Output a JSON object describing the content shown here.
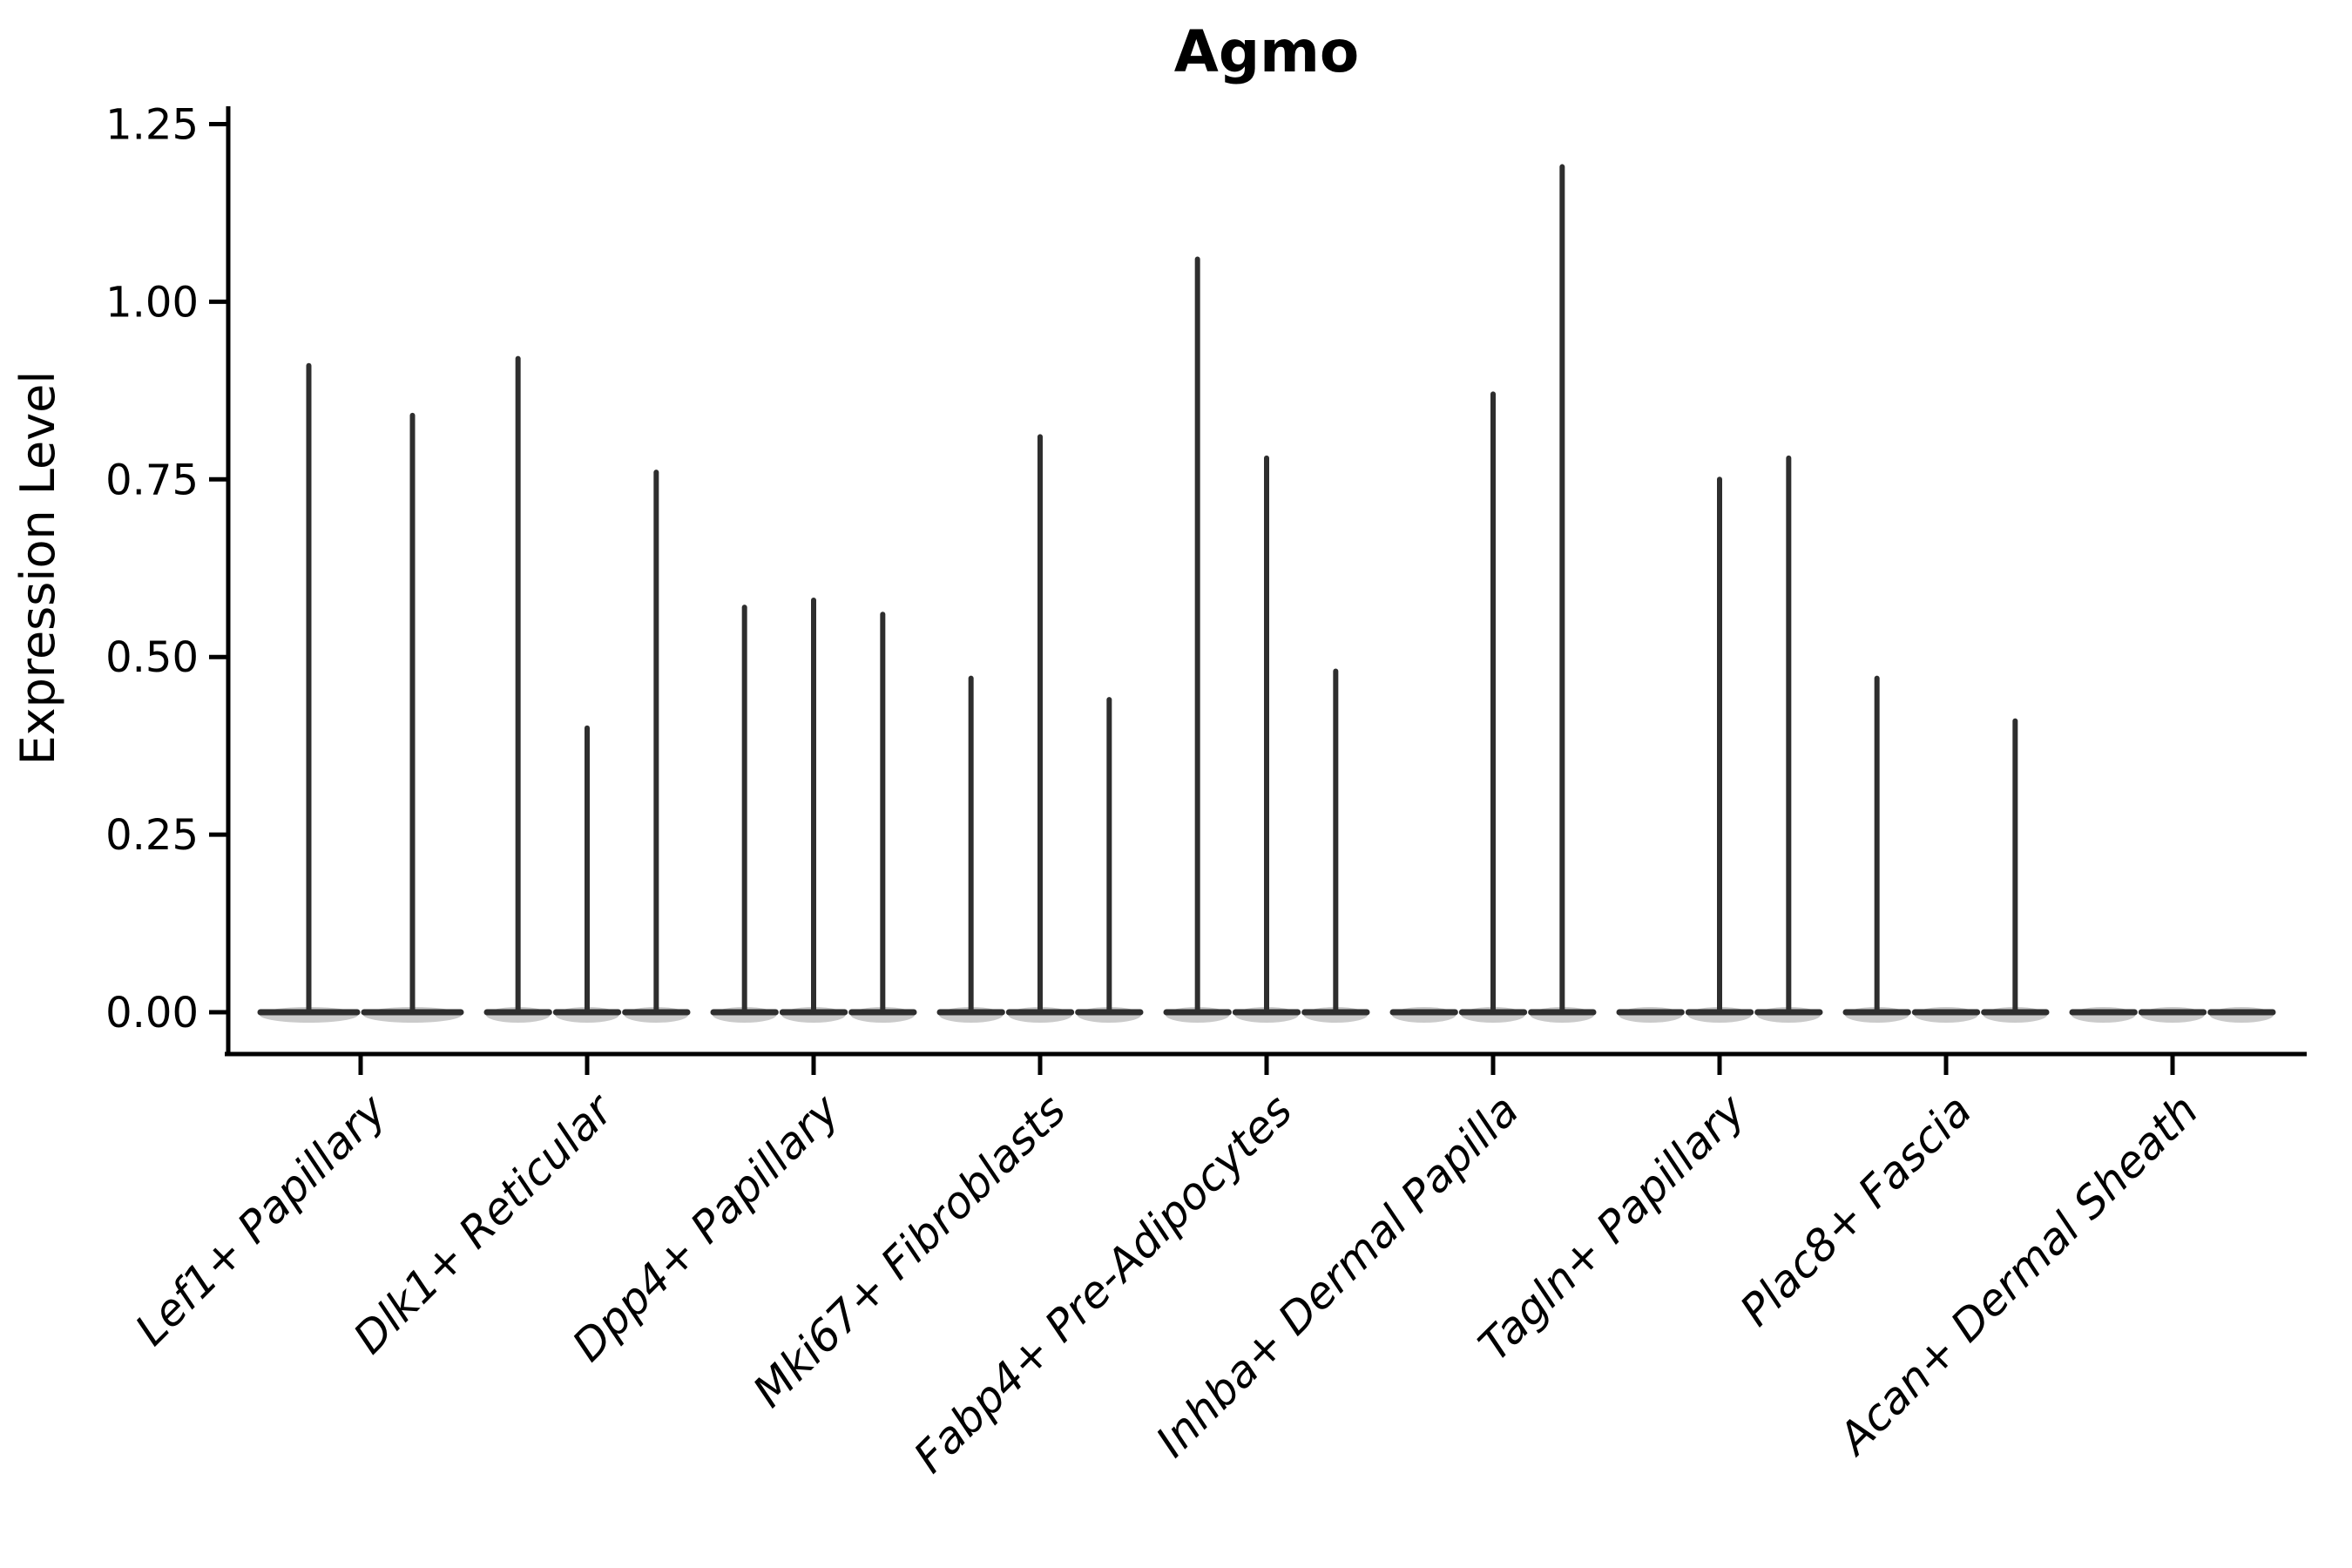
{
  "title": "Agmo",
  "y_axis": {
    "label": "Expression Level",
    "tick_labels": [
      "0.00",
      "0.25",
      "0.50",
      "0.75",
      "1.00",
      "1.25"
    ],
    "tick_values": [
      0.0,
      0.25,
      0.5,
      0.75,
      1.0,
      1.25
    ]
  },
  "chart_data": {
    "type": "violin",
    "title": "Agmo",
    "xlabel": "",
    "ylabel": "Expression Level",
    "ylim": [
      0.0,
      1.25
    ],
    "yticks": [
      0.0,
      0.25,
      0.5,
      0.75,
      1.0,
      1.25
    ],
    "ytick_labels": [
      "0.00",
      "0.25",
      "0.50",
      "0.75",
      "1.00",
      "1.25"
    ],
    "grid": false,
    "legend": "none",
    "violin_style": "thin spike violins: density mass concentrated at 0 with a flat base line and a thin vertical tail rising to the maximum expression value; groups contain dodged sub-violins",
    "violin_color": "#2e2e2e",
    "axis_color": "#000000",
    "categories": [
      "Lef1+ Papillary",
      "Dlk1+ Reticular",
      "Dpp4+ Papillary",
      "Mki67+ Fibroblasts",
      "Fabp4+ Pre-Adipocytes",
      "Inhba+ Dermal Papilla",
      "Tagln+ Papillary",
      "Plac8+ Fascia",
      "Acan+ Dermal Sheath"
    ],
    "series": [
      {
        "category": "Lef1+ Papillary",
        "spike_max_values": [
          0.91,
          0.84
        ]
      },
      {
        "category": "Dlk1+ Reticular",
        "spike_max_values": [
          0.92,
          0.4,
          0.76
        ]
      },
      {
        "category": "Dpp4+ Papillary",
        "spike_max_values": [
          0.57,
          0.58,
          0.56
        ]
      },
      {
        "category": "Mki67+ Fibroblasts",
        "spike_max_values": [
          0.47,
          0.81,
          0.44
        ]
      },
      {
        "category": "Fabp4+ Pre-Adipocytes",
        "spike_max_values": [
          1.06,
          0.78,
          0.48
        ]
      },
      {
        "category": "Inhba+ Dermal Papilla",
        "spike_max_values": [
          0.0,
          0.87,
          1.19
        ]
      },
      {
        "category": "Tagln+ Papillary",
        "spike_max_values": [
          0.0,
          0.75,
          0.78
        ]
      },
      {
        "category": "Plac8+ Fascia",
        "spike_max_values": [
          0.47,
          0.0,
          0.41
        ]
      },
      {
        "category": "Acan+ Dermal Sheath",
        "spike_max_values": [
          0.0,
          0.0,
          0.0
        ]
      }
    ]
  }
}
